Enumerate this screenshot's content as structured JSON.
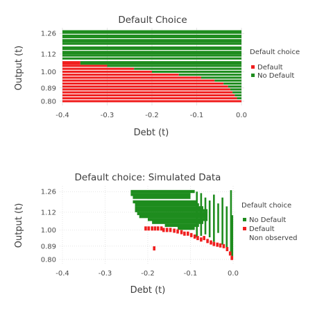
{
  "colors": {
    "default": "#f01e1e",
    "no_default": "#1e8c1e",
    "grid": "#d9d9d9"
  },
  "chart_data": [
    {
      "type": "heatmap",
      "title": "Default Choice",
      "xlabel": "Debt (t)",
      "ylabel": "Output (t)",
      "xlim": [
        -0.4,
        0.0
      ],
      "ylim": [
        0.79,
        1.28
      ],
      "xticks": [
        "-0.4",
        "-0.3",
        "-0.2",
        "-0.1",
        "0.0"
      ],
      "xtick_values": [
        -0.4,
        -0.3,
        -0.2,
        -0.1,
        0.0
      ],
      "yticks": [
        "1.26",
        "1.12",
        "1.00",
        "0.89",
        "0.80"
      ],
      "ytick_values": [
        1.26,
        1.12,
        1.0,
        0.89,
        0.8
      ],
      "legend": {
        "title": "Default choice",
        "entries": [
          "Default",
          "No Default"
        ],
        "position": "right"
      },
      "output_levels": [
        0.8,
        0.82,
        0.84,
        0.86,
        0.88,
        0.9,
        0.92,
        0.94,
        0.96,
        0.98,
        1.0,
        1.02,
        1.04,
        1.06,
        1.09,
        1.11,
        1.13,
        1.16,
        1.19,
        1.21,
        1.24,
        1.27
      ],
      "default_boundary_debt": [
        0.0,
        -0.01,
        -0.015,
        -0.02,
        -0.025,
        -0.03,
        -0.04,
        -0.06,
        -0.09,
        -0.14,
        -0.2,
        -0.24,
        -0.3,
        -0.36,
        -0.4,
        -0.4,
        -0.4,
        -0.4,
        -0.4,
        -0.4,
        -0.4,
        -0.4
      ]
    },
    {
      "type": "scatter",
      "title": "Default choice: Simulated Data",
      "xlabel": "Debt (t)",
      "ylabel": "Output (t)",
      "xlim": [
        -0.4,
        0.0
      ],
      "ylim": [
        0.79,
        1.28
      ],
      "xticks": [
        "-0.4",
        "-0.3",
        "-0.2",
        "-0.1",
        "0.0"
      ],
      "xtick_values": [
        -0.4,
        -0.3,
        -0.2,
        -0.1,
        0.0
      ],
      "yticks": [
        "1.26",
        "1.12",
        "1.00",
        "0.89",
        "0.80"
      ],
      "ytick_values": [
        1.26,
        1.12,
        1.0,
        0.89,
        0.8
      ],
      "legend": {
        "title": "Default choice",
        "entries": [
          "No Default",
          "Default",
          "Non observed"
        ],
        "position": "right"
      },
      "no_default_rows": [
        {
          "y": 1.26,
          "from": -0.24,
          "to": -0.09
        },
        {
          "y": 1.24,
          "from": -0.24,
          "to": -0.1
        },
        {
          "y": 1.22,
          "from": -0.235,
          "to": -0.1
        },
        {
          "y": 1.19,
          "from": -0.235,
          "to": -0.085
        },
        {
          "y": 1.17,
          "from": -0.23,
          "to": -0.08
        },
        {
          "y": 1.15,
          "from": -0.23,
          "to": -0.07
        },
        {
          "y": 1.13,
          "from": -0.23,
          "to": -0.06
        },
        {
          "y": 1.11,
          "from": -0.225,
          "to": -0.06
        },
        {
          "y": 1.09,
          "from": -0.22,
          "to": -0.06
        },
        {
          "y": 1.07,
          "from": -0.2,
          "to": -0.06
        },
        {
          "y": 1.05,
          "from": -0.19,
          "to": -0.07
        },
        {
          "y": 1.03,
          "from": -0.16,
          "to": -0.08
        },
        {
          "y": 1.01,
          "from": -0.13,
          "to": -0.09
        }
      ],
      "no_default_sparse": [
        {
          "x": -0.085,
          "y1": 0.95,
          "y2": 1.26
        },
        {
          "x": -0.075,
          "y1": 0.96,
          "y2": 1.25
        },
        {
          "x": -0.065,
          "y1": 0.97,
          "y2": 1.22
        },
        {
          "x": -0.055,
          "y1": 0.95,
          "y2": 1.2
        },
        {
          "x": -0.045,
          "y1": 0.92,
          "y2": 1.24
        },
        {
          "x": -0.035,
          "y1": 0.98,
          "y2": 1.18
        },
        {
          "x": -0.025,
          "y1": 0.9,
          "y2": 1.22
        },
        {
          "x": -0.015,
          "y1": 0.88,
          "y2": 1.16
        },
        {
          "x": -0.005,
          "y1": 0.83,
          "y2": 1.27
        },
        {
          "x": -0.002,
          "y1": 0.8,
          "y2": 1.1
        }
      ],
      "default_points": [
        {
          "x": -0.205,
          "y": 1.01
        },
        {
          "x": -0.198,
          "y": 1.01
        },
        {
          "x": -0.19,
          "y": 1.01
        },
        {
          "x": -0.183,
          "y": 1.01
        },
        {
          "x": -0.176,
          "y": 1.01
        },
        {
          "x": -0.168,
          "y": 1.01
        },
        {
          "x": -0.163,
          "y": 1.0
        },
        {
          "x": -0.155,
          "y": 1.0
        },
        {
          "x": -0.147,
          "y": 1.0
        },
        {
          "x": -0.138,
          "y": 0.995
        },
        {
          "x": -0.13,
          "y": 0.99
        },
        {
          "x": -0.121,
          "y": 0.985
        },
        {
          "x": -0.114,
          "y": 0.975
        },
        {
          "x": -0.106,
          "y": 0.975
        },
        {
          "x": -0.098,
          "y": 0.965
        },
        {
          "x": -0.09,
          "y": 0.955
        },
        {
          "x": -0.083,
          "y": 0.945
        },
        {
          "x": -0.075,
          "y": 0.935
        },
        {
          "x": -0.068,
          "y": 0.945
        },
        {
          "x": -0.06,
          "y": 0.925
        },
        {
          "x": -0.052,
          "y": 0.915
        },
        {
          "x": -0.045,
          "y": 0.905
        },
        {
          "x": -0.037,
          "y": 0.9
        },
        {
          "x": -0.03,
          "y": 0.895
        },
        {
          "x": -0.022,
          "y": 0.89
        },
        {
          "x": -0.014,
          "y": 0.87
        },
        {
          "x": -0.007,
          "y": 0.84
        },
        {
          "x": -0.003,
          "y": 0.81
        },
        {
          "x": -0.185,
          "y": 0.875
        }
      ]
    }
  ]
}
